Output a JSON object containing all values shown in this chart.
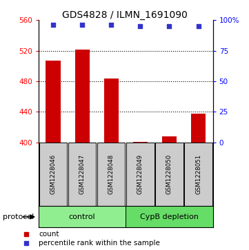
{
  "title": "GDS4828 / ILMN_1691090",
  "samples": [
    "GSM1228046",
    "GSM1228047",
    "GSM1228048",
    "GSM1228049",
    "GSM1228050",
    "GSM1228051"
  ],
  "count_values": [
    507,
    521,
    484,
    401,
    408,
    438
  ],
  "percentile_values": [
    96,
    96,
    96,
    95,
    95,
    95
  ],
  "ylim_left": [
    400,
    560
  ],
  "ylim_right": [
    0,
    100
  ],
  "yticks_left": [
    400,
    440,
    480,
    520,
    560
  ],
  "yticks_right": [
    0,
    25,
    50,
    75,
    100
  ],
  "ytick_labels_right": [
    "0",
    "25",
    "50",
    "75",
    "100%"
  ],
  "bar_color": "#cc0000",
  "scatter_color": "#3333cc",
  "protocol_groups": [
    {
      "label": "control",
      "start": 0,
      "end": 3,
      "color": "#90ee90"
    },
    {
      "label": "CypB depletion",
      "start": 3,
      "end": 6,
      "color": "#66dd66"
    }
  ],
  "protocol_label": "protocol",
  "legend_items": [
    {
      "color": "#cc0000",
      "label": "count"
    },
    {
      "color": "#3333cc",
      "label": "percentile rank within the sample"
    }
  ],
  "sample_box_color": "#cccccc",
  "bar_width": 0.5,
  "title_fontsize": 10,
  "tick_fontsize": 7.5,
  "grid_yticks": [
    440,
    480,
    520
  ]
}
